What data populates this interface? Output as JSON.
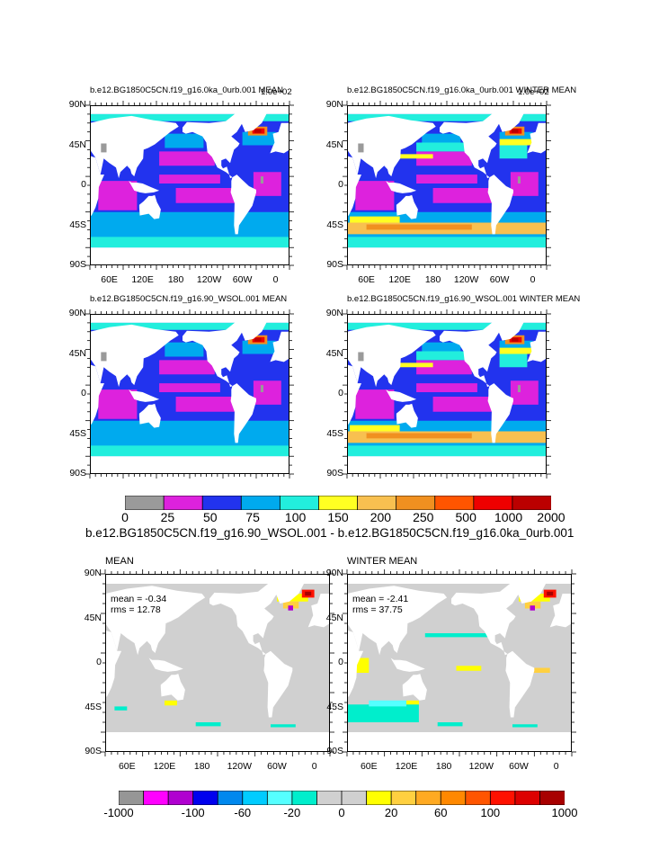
{
  "panels": [
    {
      "title": "b.e12.BG1850C5CN.f19_g16.0ka_0urb.001 MEAN",
      "corner": "1.0e+02",
      "kind": "mean"
    },
    {
      "title": "b.e12.BG1850C5CN.f19_g16.0ka_0urb.001 WINTER MEAN",
      "corner": "1.0e+02",
      "kind": "winter"
    },
    {
      "title": "b.e12.BG1850C5CN.f19_g16.90_WSOL.001 MEAN",
      "corner": "",
      "kind": "mean"
    },
    {
      "title": "b.e12.BG1850C5CN.f19_g16.90_WSOL.001 WINTER MEAN",
      "corner": "",
      "kind": "winter"
    }
  ],
  "diff_panels": [
    {
      "title": "MEAN",
      "mean": "mean = -0.34",
      "rms": "rms = 12.78",
      "kind": "mean"
    },
    {
      "title": "WINTER MEAN",
      "mean": "mean = -2.41",
      "rms": "rms = 37.75",
      "kind": "winter"
    }
  ],
  "lat_labels": [
    "90N",
    "45N",
    "0",
    "45S",
    "90S"
  ],
  "lon_labels": [
    "60E",
    "120E",
    "180",
    "120W",
    "60W",
    "0"
  ],
  "colorbar1": {
    "colors": [
      "#9a9a9a",
      "#dd22dd",
      "#2233ee",
      "#00aaee",
      "#22eedd",
      "#ffff22",
      "#f8c050",
      "#f09020",
      "#ff5500",
      "#ee0000",
      "#bb0000"
    ],
    "labels": [
      "0",
      "25",
      "50",
      "75",
      "100",
      "150",
      "200",
      "250",
      "500",
      "1000",
      "2000"
    ]
  },
  "diff_title": "b.e12.BG1850C5CN.f19_g16.90_WSOL.001 - b.e12.BG1850C5CN.f19_g16.0ka_0urb.001",
  "colorbar2": {
    "colors": [
      "#969696",
      "#ff00ff",
      "#b000d0",
      "#0000ee",
      "#0088ee",
      "#00ccff",
      "#55ffff",
      "#00eecc",
      "#d0d0d0",
      "#d0d0d0",
      "#ffff00",
      "#ffd040",
      "#ffaa22",
      "#ff8800",
      "#ff5500",
      "#ff1100",
      "#dd0000",
      "#a80000"
    ],
    "labels": [
      "-1000",
      "-100",
      "-60",
      "-20",
      "0",
      "20",
      "60",
      "100",
      "1000"
    ]
  }
}
